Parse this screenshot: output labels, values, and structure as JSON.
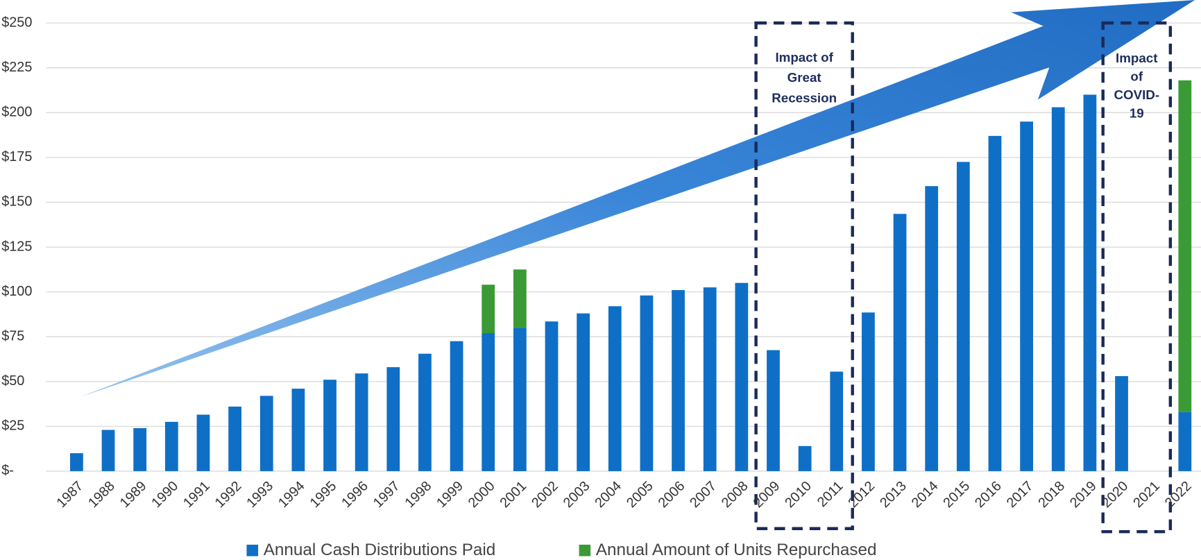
{
  "chart_data": {
    "type": "stacked_bar",
    "categories": [
      "1987",
      "1988",
      "1989",
      "1990",
      "1991",
      "1992",
      "1993",
      "1994",
      "1995",
      "1996",
      "1997",
      "1998",
      "1999",
      "2000",
      "2001",
      "2002",
      "2003",
      "2004",
      "2005",
      "2006",
      "2007",
      "2008",
      "2009",
      "2010",
      "2011",
      "2012",
      "2013",
      "2014",
      "2015",
      "2016",
      "2017",
      "2018",
      "2019",
      "2020",
      "2021",
      "2022"
    ],
    "series": [
      {
        "name": "Annual Cash Distributions Paid",
        "color": "#0f6fc6",
        "values": [
          10,
          23,
          24,
          27.5,
          31.5,
          36,
          42,
          46,
          51,
          54.5,
          58,
          65.5,
          72.5,
          77,
          80,
          83.5,
          88,
          92,
          98,
          101,
          102.5,
          105,
          67.5,
          14,
          55.5,
          88.5,
          143.5,
          159,
          172.5,
          187,
          195,
          203,
          210,
          53,
          0,
          33
        ]
      },
      {
        "name": "Annual Amount of Units Repurchased",
        "color": "#3a9a35",
        "values": [
          0,
          0,
          0,
          0,
          0,
          0,
          0,
          0,
          0,
          0,
          0,
          0,
          0,
          27,
          32.5,
          0,
          0,
          0,
          0,
          0,
          0,
          0,
          0,
          0,
          0,
          0,
          0,
          0,
          0,
          0,
          0,
          0,
          0,
          0,
          0,
          185
        ]
      }
    ],
    "ylim": [
      0,
      250
    ],
    "yticks": [
      {
        "value": 0,
        "label": "$-"
      },
      {
        "value": 25,
        "label": "$25"
      },
      {
        "value": 50,
        "label": "$50"
      },
      {
        "value": 75,
        "label": "$75"
      },
      {
        "value": 100,
        "label": "$100"
      },
      {
        "value": 125,
        "label": "$125"
      },
      {
        "value": 150,
        "label": "$150"
      },
      {
        "value": 175,
        "label": "$175"
      },
      {
        "value": 200,
        "label": "$200"
      },
      {
        "value": 225,
        "label": "$225"
      },
      {
        "value": 250,
        "label": "$250"
      }
    ],
    "grid": true,
    "legend": "bottom",
    "annotations": [
      {
        "lines": [
          "Impact of",
          "Great",
          "Recession"
        ]
      },
      {
        "lines": [
          "Impact",
          "of",
          "COVID-",
          "19"
        ]
      }
    ]
  }
}
